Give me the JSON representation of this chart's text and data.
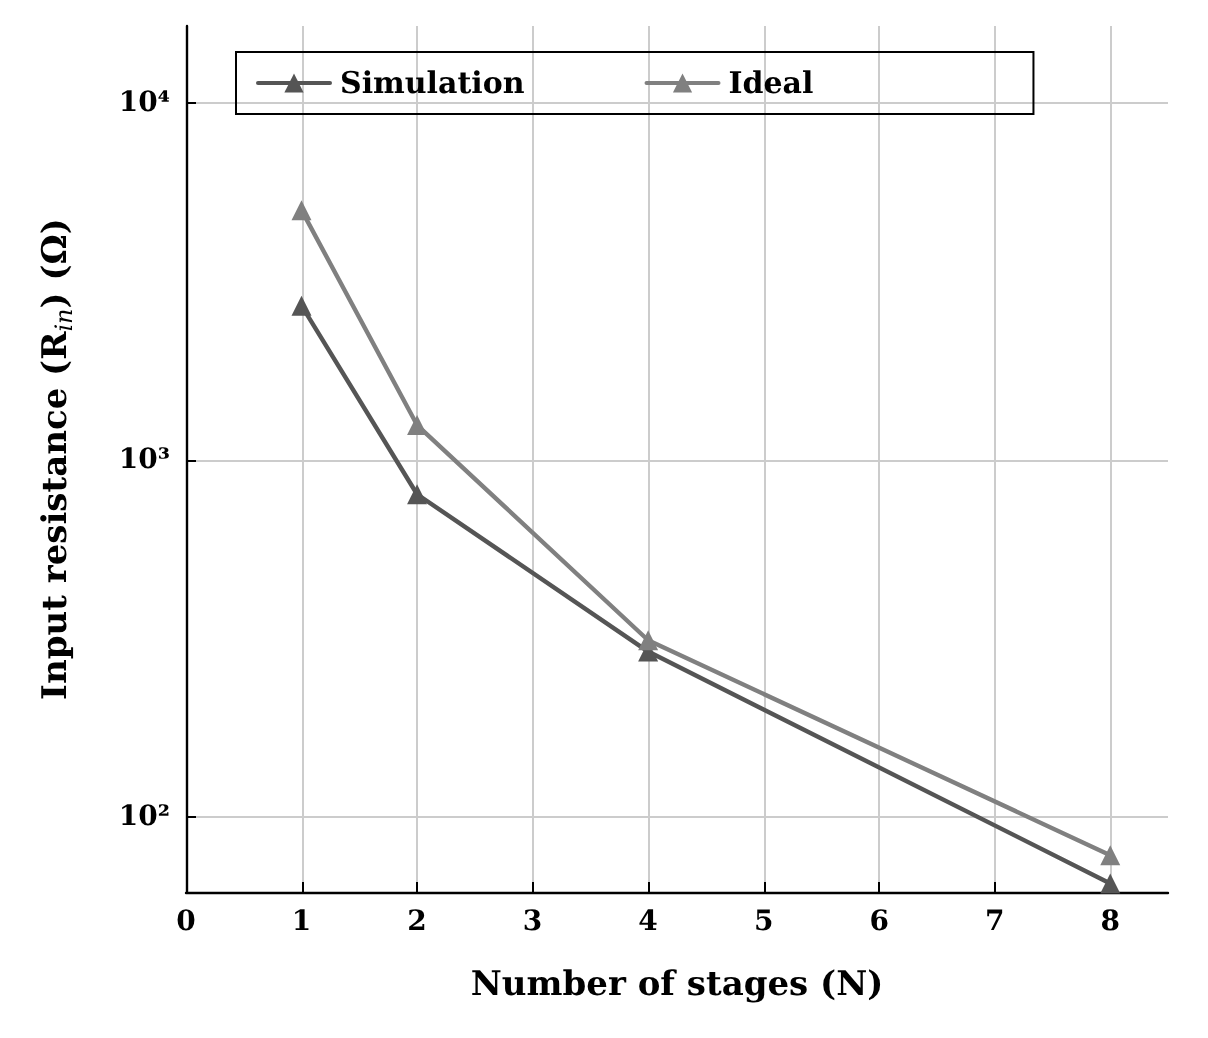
{
  "chart_data": {
    "type": "line",
    "xlabel": "Number of stages (N)",
    "ylabel": "Input resistance (R$_{in}$) (Ω)",
    "xlim": [
      0,
      8.5
    ],
    "xticks": [
      0,
      1,
      2,
      3,
      4,
      5,
      6,
      7,
      8
    ],
    "ylim": [
      61.5,
      16400
    ],
    "yticks": [
      {
        "value": 100,
        "label": "10²"
      },
      {
        "value": 1000,
        "label": "10³"
      },
      {
        "value": 10000,
        "label": "10⁴"
      }
    ],
    "log": "y",
    "grid": true,
    "legend": "top left",
    "marker": "triangle",
    "line_style": "solid",
    "x": [
      1,
      2,
      4,
      8
    ],
    "series": [
      {
        "name": "Simulation",
        "color": "#555555",
        "values": [
          2700,
          800,
          290,
          65
        ]
      },
      {
        "name": "Ideal",
        "color": "#808080",
        "values": [
          5000,
          1250,
          312,
          78
        ]
      }
    ]
  }
}
